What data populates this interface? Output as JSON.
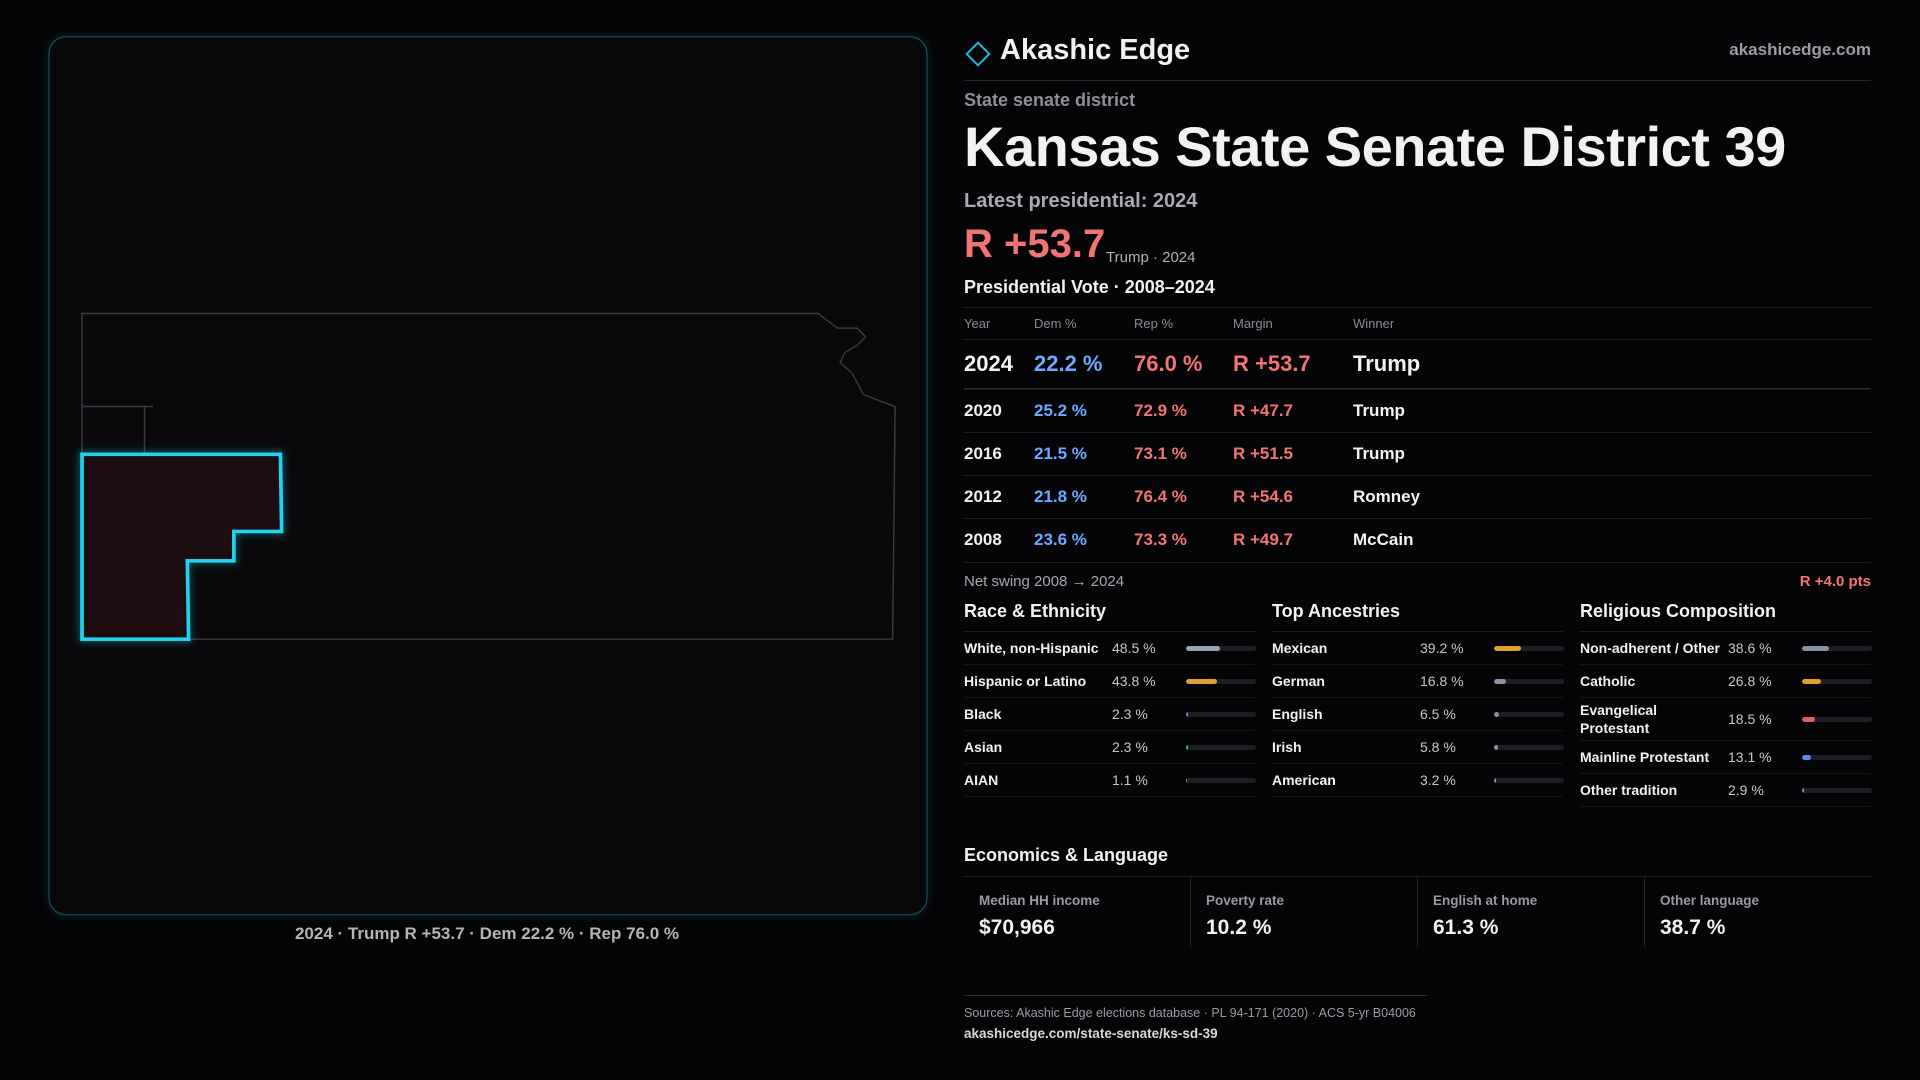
{
  "header": {
    "brand": "Akashic Edge",
    "site": "akashicedge.com"
  },
  "map": {
    "caption": "2024 · Trump R +53.7 · Dem 22.2 % · Rep 76.0 %"
  },
  "district": {
    "type": "State senate district",
    "title": "Kansas State Senate District 39",
    "latest": "Latest presidential: 2024",
    "margin": "R +53.7",
    "margin_note": "Trump · 2024"
  },
  "vote_table": {
    "title": "Presidential Vote · 2008–2024",
    "columns": [
      "Year",
      "Dem %",
      "Rep %",
      "Margin",
      "Winner"
    ],
    "rows": [
      [
        "2024",
        "22.2 %",
        "76.0 %",
        "R +53.7",
        "Trump"
      ],
      [
        "2020",
        "25.2 %",
        "72.9 %",
        "R +47.7",
        "Trump"
      ],
      [
        "2016",
        "21.5 %",
        "73.1 %",
        "R +51.5",
        "Trump"
      ],
      [
        "2012",
        "21.8 %",
        "76.4 %",
        "R +54.6",
        "Romney"
      ],
      [
        "2008",
        "23.6 %",
        "73.3 %",
        "R +49.7",
        "McCain"
      ]
    ]
  },
  "swing": {
    "label": "Net swing 2008 → 2024",
    "value": "R +4.0 pts"
  },
  "demographics": [
    {
      "title": "Race & Ethnicity",
      "items": [
        {
          "name": "White, non-Hispanic",
          "value": 48.5,
          "label": "48.5 %",
          "color": "#9aa3b5"
        },
        {
          "name": "Hispanic or Latino",
          "value": 43.8,
          "label": "43.8 %",
          "color": "#e0a030"
        },
        {
          "name": "Black",
          "value": 2.3,
          "label": "2.3 %",
          "color": "#5b8def"
        },
        {
          "name": "Asian",
          "value": 2.3,
          "label": "2.3 %",
          "color": "#3fbf7f"
        },
        {
          "name": "AIAN",
          "value": 1.1,
          "label": "1.1 %",
          "color": "#e07040"
        }
      ]
    },
    {
      "title": "Top Ancestries",
      "items": [
        {
          "name": "Mexican",
          "value": 39.2,
          "label": "39.2 %",
          "color": "#e0a030"
        },
        {
          "name": "German",
          "value": 16.8,
          "label": "16.8 %",
          "color": "#8a93a5"
        },
        {
          "name": "English",
          "value": 6.5,
          "label": "6.5 %",
          "color": "#8a93a5"
        },
        {
          "name": "Irish",
          "value": 5.8,
          "label": "5.8 %",
          "color": "#8a93a5"
        },
        {
          "name": "American",
          "value": 3.2,
          "label": "3.2 %",
          "color": "#8a93a5"
        }
      ]
    },
    {
      "title": "Religious Composition",
      "items": [
        {
          "name": "Non-adherent / Other",
          "value": 38.6,
          "label": "38.6 %",
          "color": "#8a93a5"
        },
        {
          "name": "Catholic",
          "value": 26.8,
          "label": "26.8 %",
          "color": "#e0a030"
        },
        {
          "name": "Evangelical Protestant",
          "value": 18.5,
          "label": "18.5 %",
          "color": "#e06060"
        },
        {
          "name": "Mainline Protestant",
          "value": 13.1,
          "label": "13.1 %",
          "color": "#5b8def"
        },
        {
          "name": "Other tradition",
          "value": 2.9,
          "label": "2.9 %",
          "color": "#8a93a5"
        }
      ]
    }
  ],
  "economics": {
    "title": "Economics & Language",
    "cards": [
      {
        "label": "Median HH income",
        "value": "$70,966"
      },
      {
        "label": "Poverty rate",
        "value": "10.2 %"
      },
      {
        "label": "English at home",
        "value": "61.3 %"
      },
      {
        "label": "Other language",
        "value": "38.7 %"
      }
    ]
  },
  "footer": {
    "sources": "Sources: Akashic Edge elections database · PL 94-171 (2020) · ACS 5-yr B04006",
    "url": "akashicedge.com/state-senate/ks-sd-39"
  }
}
